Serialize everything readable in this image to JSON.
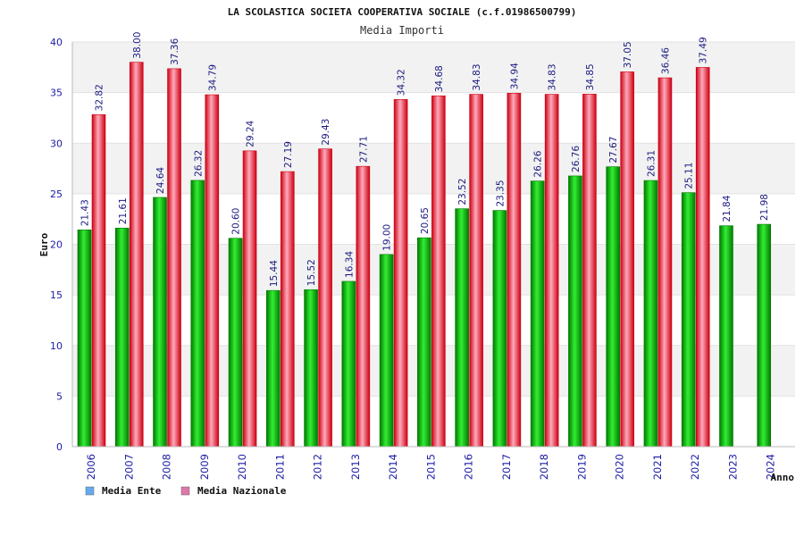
{
  "chart_data": {
    "type": "bar",
    "title": "LA SCOLASTICA SOCIETA COOPERATIVA SOCIALE (c.f.01986500799)",
    "subtitle": "Media Importi",
    "xlabel": "Anno",
    "ylabel": "Euro",
    "ylim": [
      0,
      40
    ],
    "yticks": [
      "0",
      "5",
      "10",
      "15",
      "20",
      "25",
      "30",
      "35",
      "40"
    ],
    "categories": [
      "2006",
      "2007",
      "2008",
      "2009",
      "2010",
      "2011",
      "2012",
      "2013",
      "2014",
      "2015",
      "2016",
      "2017",
      "2018",
      "2019",
      "2020",
      "2021",
      "2022",
      "2023",
      "2024"
    ],
    "series": [
      {
        "name": "Media Ente",
        "legend_color": "#66aaee",
        "color_dark": "#007a00",
        "color_light": "#33ee33",
        "values": [
          21.43,
          21.61,
          24.64,
          26.32,
          20.6,
          15.44,
          15.52,
          16.34,
          19.0,
          20.65,
          23.52,
          23.35,
          26.26,
          26.76,
          27.67,
          26.31,
          25.11,
          21.84,
          21.98
        ],
        "labels": [
          "21.43",
          "21.61",
          "24.64",
          "26.32",
          "20.60",
          "15.44",
          "15.52",
          "16.34",
          "19.00",
          "20.65",
          "23.52",
          "23.35",
          "26.26",
          "26.76",
          "27.67",
          "26.31",
          "25.11",
          "21.84",
          "21.98"
        ]
      },
      {
        "name": "Media Nazionale",
        "legend_color": "#dd77aa",
        "color_dark": "#cc0011",
        "color_light": "#ffaabb",
        "values": [
          32.82,
          38.0,
          37.36,
          34.79,
          29.24,
          27.19,
          29.43,
          27.71,
          34.32,
          34.68,
          34.83,
          34.94,
          34.83,
          34.85,
          37.05,
          36.46,
          37.49,
          null,
          null
        ],
        "labels": [
          "32.82",
          "38.00",
          "37.36",
          "34.79",
          "29.24",
          "27.19",
          "29.43",
          "27.71",
          "34.32",
          "34.68",
          "34.83",
          "34.94",
          "34.83",
          "34.85",
          "37.05",
          "36.46",
          "37.49",
          "",
          ""
        ]
      }
    ],
    "grid": true,
    "background_bands": [
      "#f2f2f2",
      "#ffffff"
    ],
    "legend_position": "bottom-left"
  }
}
